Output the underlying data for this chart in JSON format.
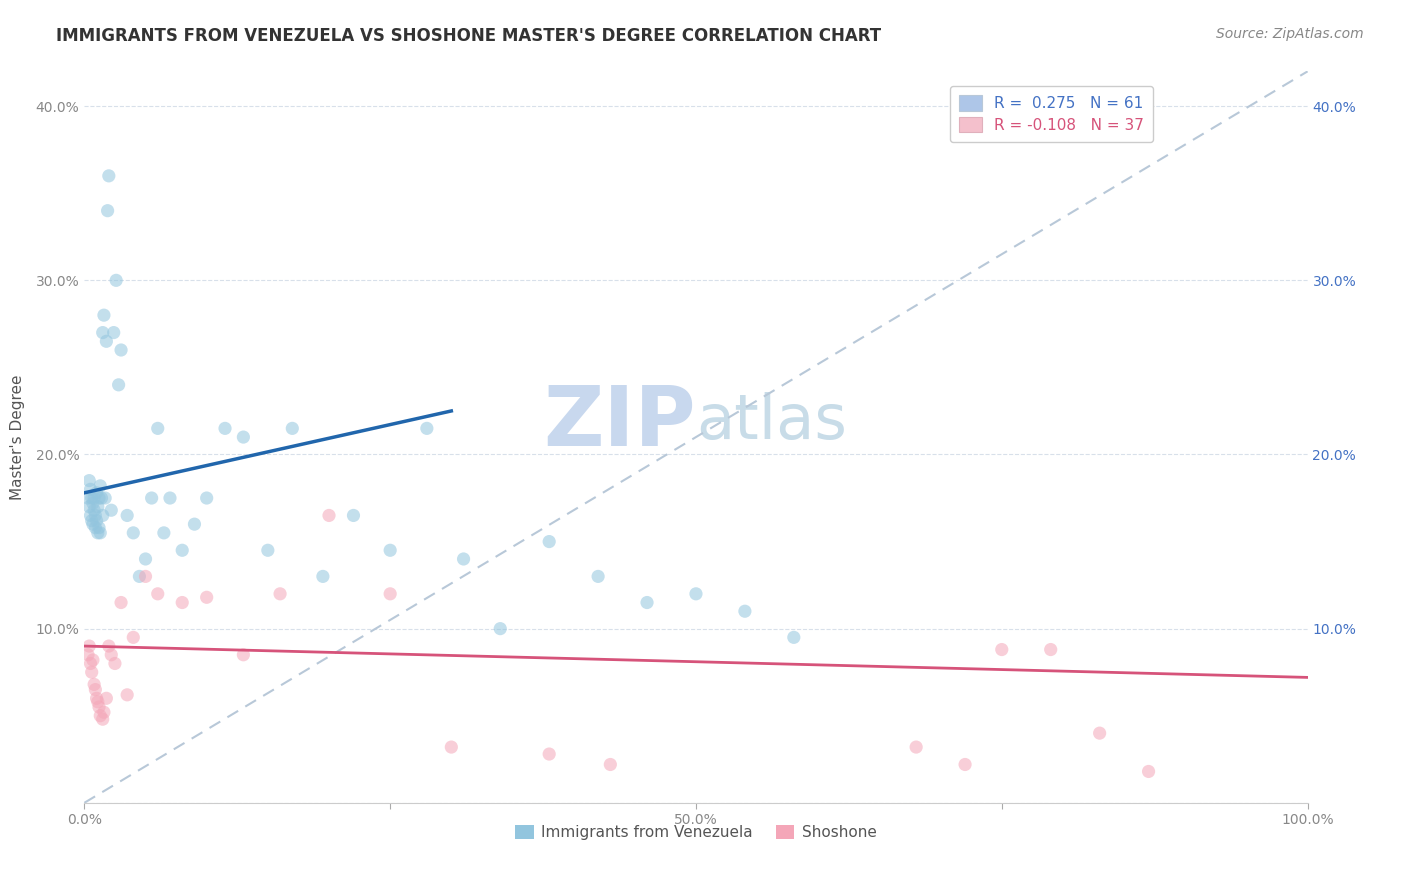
{
  "title": "IMMIGRANTS FROM VENEZUELA VS SHOSHONE MASTER'S DEGREE CORRELATION CHART",
  "source": "Source: ZipAtlas.com",
  "xlabel": "",
  "ylabel": "Master's Degree",
  "watermark": "ZIPatlas",
  "legend_entries": [
    {
      "label": "R =  0.275   N = 61",
      "color": "#aec6e8"
    },
    {
      "label": "R = -0.108   N = 37",
      "color": "#f4b8c8"
    }
  ],
  "legend_bottom": [
    "Immigrants from Venezuela",
    "Shoshone"
  ],
  "xmin": 0.0,
  "xmax": 1.0,
  "ymin": 0.0,
  "ymax": 0.42,
  "yticks": [
    0.0,
    0.1,
    0.2,
    0.3,
    0.4
  ],
  "ytick_labels_left": [
    "",
    "10.0%",
    "20.0%",
    "30.0%",
    "40.0%"
  ],
  "ytick_labels_right": [
    "",
    "10.0%",
    "20.0%",
    "30.0%",
    "40.0%"
  ],
  "xticks": [
    0.0,
    0.25,
    0.5,
    0.75,
    1.0
  ],
  "xtick_labels": [
    "0.0%",
    "",
    "50.0%",
    "",
    "100.0%"
  ],
  "blue_scatter_x": [
    0.003,
    0.004,
    0.004,
    0.005,
    0.005,
    0.006,
    0.006,
    0.007,
    0.007,
    0.008,
    0.008,
    0.009,
    0.009,
    0.01,
    0.01,
    0.011,
    0.011,
    0.012,
    0.012,
    0.013,
    0.013,
    0.014,
    0.015,
    0.015,
    0.016,
    0.017,
    0.018,
    0.019,
    0.02,
    0.022,
    0.024,
    0.026,
    0.028,
    0.03,
    0.035,
    0.04,
    0.045,
    0.05,
    0.055,
    0.06,
    0.065,
    0.07,
    0.08,
    0.09,
    0.1,
    0.115,
    0.13,
    0.15,
    0.17,
    0.195,
    0.22,
    0.25,
    0.28,
    0.31,
    0.34,
    0.38,
    0.42,
    0.46,
    0.5,
    0.54,
    0.58
  ],
  "blue_scatter_y": [
    0.175,
    0.185,
    0.17,
    0.18,
    0.165,
    0.175,
    0.162,
    0.172,
    0.16,
    0.168,
    0.175,
    0.165,
    0.158,
    0.162,
    0.178,
    0.17,
    0.155,
    0.158,
    0.175,
    0.155,
    0.182,
    0.175,
    0.27,
    0.165,
    0.28,
    0.175,
    0.265,
    0.34,
    0.36,
    0.168,
    0.27,
    0.3,
    0.24,
    0.26,
    0.165,
    0.155,
    0.13,
    0.14,
    0.175,
    0.215,
    0.155,
    0.175,
    0.145,
    0.16,
    0.175,
    0.215,
    0.21,
    0.145,
    0.215,
    0.13,
    0.165,
    0.145,
    0.215,
    0.14,
    0.1,
    0.15,
    0.13,
    0.115,
    0.12,
    0.11,
    0.095
  ],
  "pink_scatter_x": [
    0.003,
    0.004,
    0.005,
    0.006,
    0.007,
    0.008,
    0.009,
    0.01,
    0.011,
    0.012,
    0.013,
    0.015,
    0.016,
    0.018,
    0.02,
    0.022,
    0.025,
    0.03,
    0.035,
    0.04,
    0.05,
    0.06,
    0.08,
    0.1,
    0.13,
    0.16,
    0.2,
    0.25,
    0.3,
    0.38,
    0.43,
    0.68,
    0.72,
    0.75,
    0.79,
    0.83,
    0.87
  ],
  "pink_scatter_y": [
    0.085,
    0.09,
    0.08,
    0.075,
    0.082,
    0.068,
    0.065,
    0.06,
    0.058,
    0.055,
    0.05,
    0.048,
    0.052,
    0.06,
    0.09,
    0.085,
    0.08,
    0.115,
    0.062,
    0.095,
    0.13,
    0.12,
    0.115,
    0.118,
    0.085,
    0.12,
    0.165,
    0.12,
    0.032,
    0.028,
    0.022,
    0.032,
    0.022,
    0.088,
    0.088,
    0.04,
    0.018
  ],
  "blue_line_x": [
    0.0,
    0.3
  ],
  "blue_line_y": [
    0.178,
    0.225
  ],
  "pink_line_x": [
    0.0,
    1.0
  ],
  "pink_line_y": [
    0.09,
    0.072
  ],
  "dashed_line_x": [
    0.0,
    1.0
  ],
  "dashed_line_y": [
    0.0,
    0.42
  ],
  "scatter_alpha": 0.55,
  "scatter_size": 90,
  "blue_color": "#92c5de",
  "pink_color": "#f4a6b8",
  "blue_line_color": "#2166ac",
  "pink_line_color": "#d6537a",
  "dashed_line_color": "#b8c8d8",
  "background_color": "#ffffff",
  "grid_color": "#d8e0ea",
  "title_fontsize": 12,
  "axis_label_fontsize": 11,
  "tick_fontsize": 10,
  "source_fontsize": 10,
  "watermark_fontsize": 60,
  "watermark_color": "#dce8f4",
  "right_ytick_color": "#4472c4"
}
